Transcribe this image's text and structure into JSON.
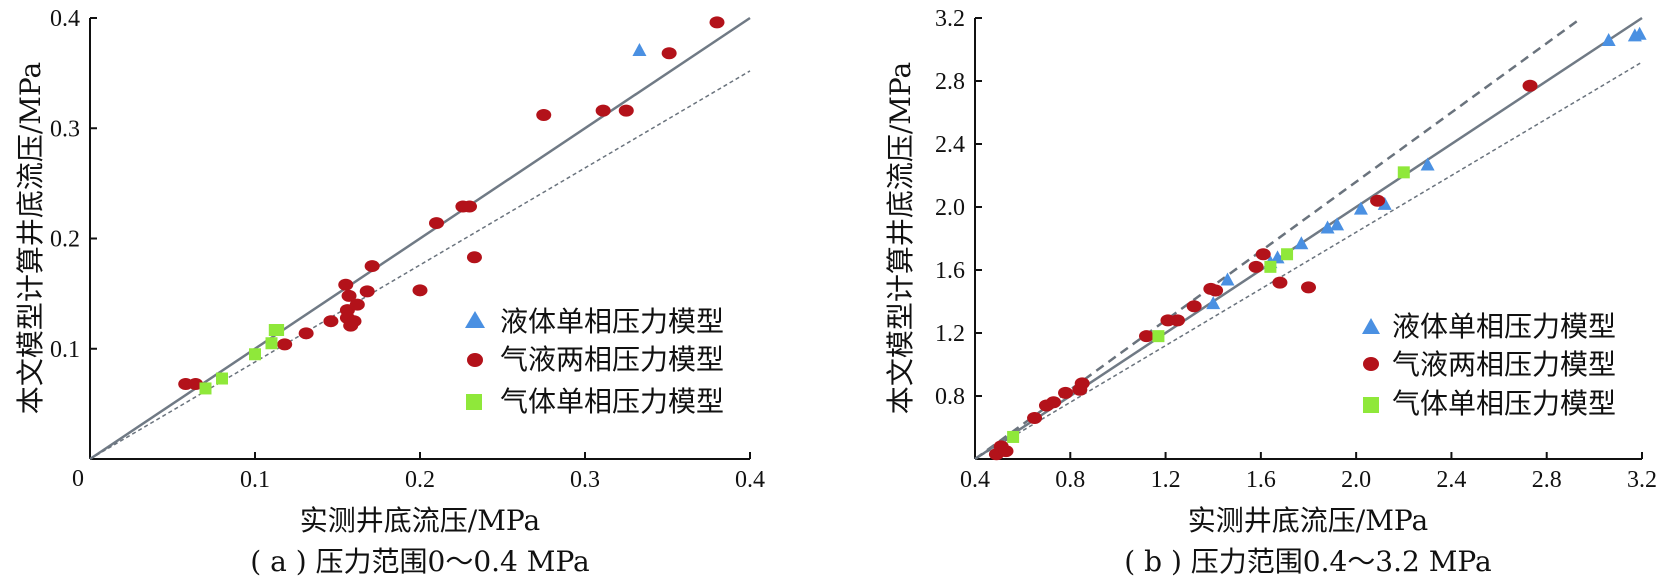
{
  "chart_data": [
    {
      "type": "scatter",
      "caption": "( a ) 压力范围0～0.4 MPa",
      "xlabel": "实测井底流压/MPa",
      "ylabel": "本文模型计算井底流压/MPa",
      "xlim": [
        0,
        0.4
      ],
      "ylim": [
        0,
        0.4
      ],
      "xticks": [
        "0.1",
        "0.2",
        "0.3",
        "0.4"
      ],
      "yticks": [
        "0.1",
        "0.2",
        "0.3",
        "0.4"
      ],
      "origin_label": "0",
      "legend_position": "bottom-right",
      "series": [
        {
          "name": "液体单相压力模型",
          "marker": "triangle",
          "color": "#4a90e2",
          "points": [
            [
              0.333,
              0.371
            ]
          ]
        },
        {
          "name": "气液两相压力模型",
          "marker": "ellipse",
          "color": "#b3121a",
          "points": [
            [
              0.058,
              0.068
            ],
            [
              0.064,
              0.068
            ],
            [
              0.118,
              0.104
            ],
            [
              0.131,
              0.114
            ],
            [
              0.146,
              0.125
            ],
            [
              0.155,
              0.158
            ],
            [
              0.157,
              0.148
            ],
            [
              0.156,
              0.135
            ],
            [
              0.156,
              0.128
            ],
            [
              0.158,
              0.121
            ],
            [
              0.16,
              0.125
            ],
            [
              0.162,
              0.14
            ],
            [
              0.168,
              0.152
            ],
            [
              0.171,
              0.175
            ],
            [
              0.2,
              0.153
            ],
            [
              0.21,
              0.214
            ],
            [
              0.226,
              0.229
            ],
            [
              0.23,
              0.229
            ],
            [
              0.233,
              0.183
            ],
            [
              0.275,
              0.312
            ],
            [
              0.311,
              0.316
            ],
            [
              0.325,
              0.316
            ],
            [
              0.351,
              0.368
            ],
            [
              0.38,
              0.396
            ]
          ]
        },
        {
          "name": "气体单相压力模型",
          "marker": "square",
          "color": "#8fe83a",
          "points": [
            [
              0.07,
              0.064
            ],
            [
              0.08,
              0.073
            ],
            [
              0.1,
              0.095
            ],
            [
              0.11,
              0.105
            ],
            [
              0.112,
              0.117
            ],
            [
              0.114,
              0.117
            ]
          ]
        }
      ],
      "reference_lines": [
        {
          "style": "solid",
          "slope": 1.0
        },
        {
          "style": "dotted",
          "slope": 0.88
        }
      ]
    },
    {
      "type": "scatter",
      "caption": "( b ) 压力范围0.4～3.2 MPa",
      "xlabel": "实测井底流压/MPa",
      "ylabel": "本文模型计算井底流压/MPa",
      "xlim": [
        0.4,
        3.2
      ],
      "ylim": [
        0.4,
        3.2
      ],
      "xticks": [
        "0.4",
        "0.8",
        "1.2",
        "1.6",
        "2.0",
        "2.4",
        "2.8",
        "3.2"
      ],
      "yticks": [
        "0.8",
        "1.2",
        "1.6",
        "2.0",
        "2.4",
        "2.8",
        "3.2"
      ],
      "legend_position": "bottom-right",
      "series": [
        {
          "name": "液体单相压力模型",
          "marker": "triangle",
          "color": "#4a90e2",
          "points": [
            [
              1.4,
              1.39
            ],
            [
              1.46,
              1.54
            ],
            [
              1.64,
              1.65
            ],
            [
              1.67,
              1.68
            ],
            [
              1.77,
              1.77
            ],
            [
              1.88,
              1.87
            ],
            [
              1.92,
              1.89
            ],
            [
              2.02,
              1.99
            ],
            [
              2.12,
              2.02
            ],
            [
              2.3,
              2.27
            ],
            [
              3.06,
              3.06
            ],
            [
              3.17,
              3.09
            ],
            [
              3.19,
              3.1
            ]
          ]
        },
        {
          "name": "气液两相压力模型",
          "marker": "ellipse",
          "color": "#b3121a",
          "points": [
            [
              0.49,
              0.43
            ],
            [
              0.51,
              0.48
            ],
            [
              0.53,
              0.45
            ],
            [
              0.65,
              0.66
            ],
            [
              0.7,
              0.74
            ],
            [
              0.73,
              0.76
            ],
            [
              0.78,
              0.82
            ],
            [
              0.84,
              0.84
            ],
            [
              0.85,
              0.88
            ],
            [
              1.12,
              1.18
            ],
            [
              1.21,
              1.28
            ],
            [
              1.25,
              1.28
            ],
            [
              1.32,
              1.37
            ],
            [
              1.39,
              1.48
            ],
            [
              1.41,
              1.47
            ],
            [
              1.58,
              1.62
            ],
            [
              1.61,
              1.7
            ],
            [
              1.68,
              1.52
            ],
            [
              1.8,
              1.49
            ],
            [
              2.09,
              2.04
            ],
            [
              2.73,
              2.77
            ]
          ]
        },
        {
          "name": "气体单相压力模型",
          "marker": "square",
          "color": "#8fe83a",
          "points": [
            [
              0.56,
              0.54
            ],
            [
              1.17,
              1.18
            ],
            [
              1.64,
              1.62
            ],
            [
              1.71,
              1.7
            ],
            [
              2.2,
              2.22
            ]
          ]
        }
      ],
      "reference_lines": [
        {
          "style": "dashed",
          "slope": 1.1
        },
        {
          "style": "solid",
          "slope": 1.0
        },
        {
          "style": "dotted",
          "slope": 0.9
        }
      ]
    }
  ]
}
